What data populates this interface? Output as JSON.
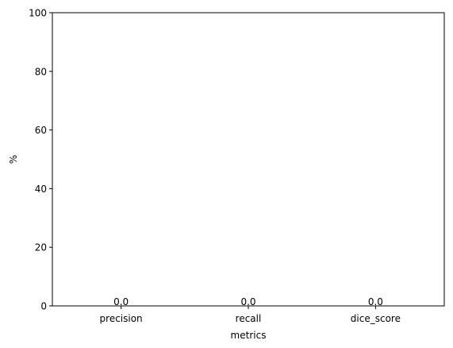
{
  "chart_data": {
    "type": "bar",
    "categories": [
      "precision",
      "recall",
      "dice_score"
    ],
    "values": [
      0.0,
      0.0,
      0.0
    ],
    "value_labels": [
      "0.0",
      "0.0",
      "0.0"
    ],
    "title": "",
    "xlabel": "metrics",
    "ylabel": "%",
    "ylim": [
      0,
      100
    ],
    "yticks": [
      0,
      20,
      40,
      60,
      80,
      100
    ],
    "ytick_labels": [
      "0",
      "20",
      "40",
      "60",
      "80",
      "100"
    ],
    "grid": false,
    "legend": "none",
    "bar_color": "#1f77b4",
    "axis_color": "#000000"
  }
}
